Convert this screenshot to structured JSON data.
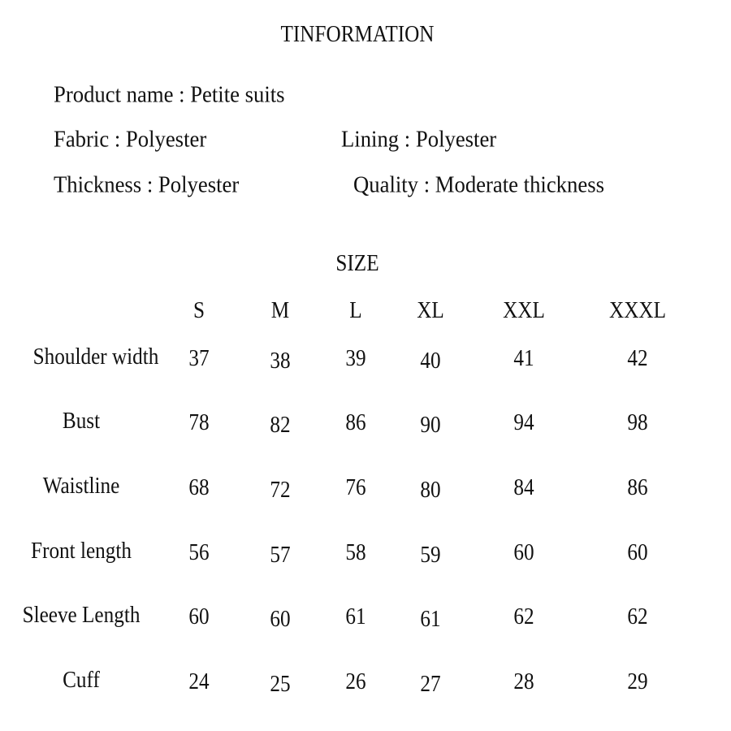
{
  "title": "TINFORMATION",
  "info": {
    "product_name": "Product name : Petite suits",
    "fabric": "Fabric :  Polyester",
    "lining": "Lining   :   Polyester",
    "thickness": "Thickness : Polyester",
    "quality": "Quality : Moderate thickness"
  },
  "size_heading": "SIZE",
  "size_table": {
    "columns": [
      "S",
      "M",
      "L",
      "XL",
      "XXL",
      "XXXL"
    ],
    "rows": [
      {
        "label": "Shoulder width",
        "values": [
          "37",
          "38",
          "39",
          "40",
          "41",
          "42"
        ]
      },
      {
        "label": "Bust",
        "values": [
          "78",
          "82",
          "86",
          "90",
          "94",
          "98"
        ]
      },
      {
        "label": "Waistline",
        "values": [
          "68",
          "72",
          "76",
          "80",
          "84",
          "86"
        ]
      },
      {
        "label": "Front length",
        "values": [
          "56",
          "57",
          "58",
          "59",
          "60",
          "60"
        ]
      },
      {
        "label": "Sleeve Length",
        "values": [
          "60",
          "60",
          "61",
          "61",
          "62",
          "62"
        ]
      },
      {
        "label": "Cuff",
        "values": [
          "24",
          "25",
          "26",
          "27",
          "28",
          "29"
        ]
      }
    ]
  }
}
